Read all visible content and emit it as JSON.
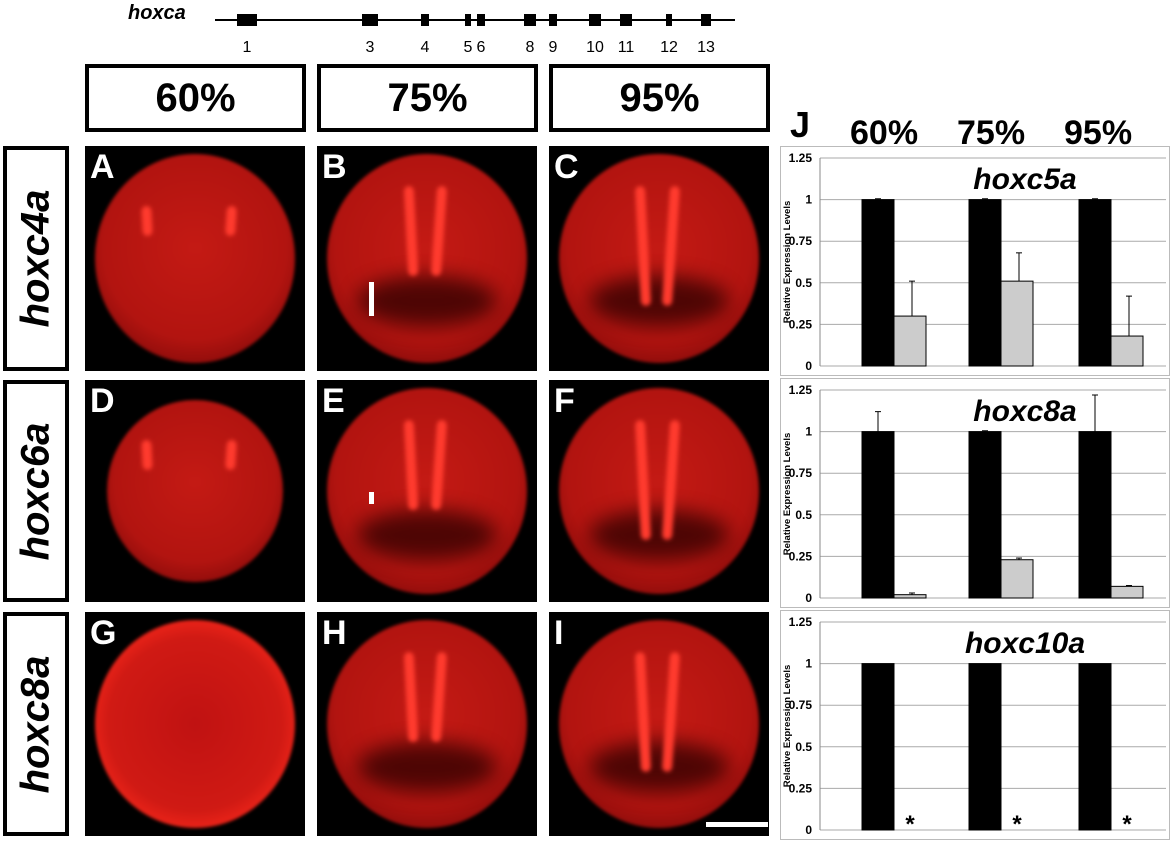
{
  "gene_map": {
    "title": "hoxca",
    "genes": [
      {
        "label": "1"
      },
      {
        "label": "3"
      },
      {
        "label": "4"
      },
      {
        "label": "5"
      },
      {
        "label": "6"
      },
      {
        "label": "8"
      },
      {
        "label": "9"
      },
      {
        "label": "10"
      },
      {
        "label": "11"
      },
      {
        "label": "12"
      },
      {
        "label": "13"
      }
    ]
  },
  "stages": [
    "60%",
    "75%",
    "95%"
  ],
  "rows": [
    "hoxc4a",
    "hoxc6a",
    "hoxc8a"
  ],
  "panels": [
    "A",
    "B",
    "C",
    "D",
    "E",
    "F",
    "G",
    "H",
    "I"
  ],
  "chart_panel_label": "J",
  "chart_data": [
    {
      "type": "bar",
      "title": "hoxc5a",
      "ylabel": "Relative Expression Levels",
      "categories": [
        "60%",
        "75%",
        "95%"
      ],
      "ylim": [
        0,
        1.25
      ],
      "yticks": [
        "0",
        "0.25",
        "0.5",
        "0.75",
        "1",
        "1.25"
      ],
      "series": [
        {
          "color": "#000000",
          "values": [
            1,
            1,
            1
          ],
          "errors": [
            0.005,
            0.005,
            0.005
          ]
        },
        {
          "color": "#cccccc",
          "values": [
            0.3,
            0.51,
            0.18
          ],
          "errors": [
            0.21,
            0.17,
            0.24
          ]
        }
      ],
      "annotations": []
    },
    {
      "type": "bar",
      "title": "hoxc8a",
      "ylabel": "Relative Expression Levels",
      "categories": [
        "60%",
        "75%",
        "95%"
      ],
      "ylim": [
        0,
        1.25
      ],
      "yticks": [
        "0",
        "0.25",
        "0.5",
        "0.75",
        "1",
        "1.25"
      ],
      "series": [
        {
          "color": "#000000",
          "values": [
            1,
            1,
            1
          ],
          "errors": [
            0.12,
            0.005,
            0.22
          ]
        },
        {
          "color": "#cccccc",
          "values": [
            0.02,
            0.23,
            0.07
          ],
          "errors": [
            0.01,
            0.01,
            0.005
          ]
        }
      ],
      "annotations": []
    },
    {
      "type": "bar",
      "title": "hoxc10a",
      "ylabel": "Relative Expression Levels",
      "categories": [
        "60%",
        "75%",
        "95%"
      ],
      "ylim": [
        0,
        1.25
      ],
      "yticks": [
        "0",
        "0.25",
        "0.5",
        "0.75",
        "1",
        "1.25"
      ],
      "series": [
        {
          "color": "#000000",
          "values": [
            1,
            1,
            1
          ],
          "errors": [
            0,
            0,
            0
          ]
        },
        {
          "color": "#cccccc",
          "values": [
            0,
            0,
            0
          ],
          "errors": [
            0,
            0,
            0
          ]
        }
      ],
      "annotations": [
        "*",
        "*",
        "*"
      ]
    }
  ]
}
